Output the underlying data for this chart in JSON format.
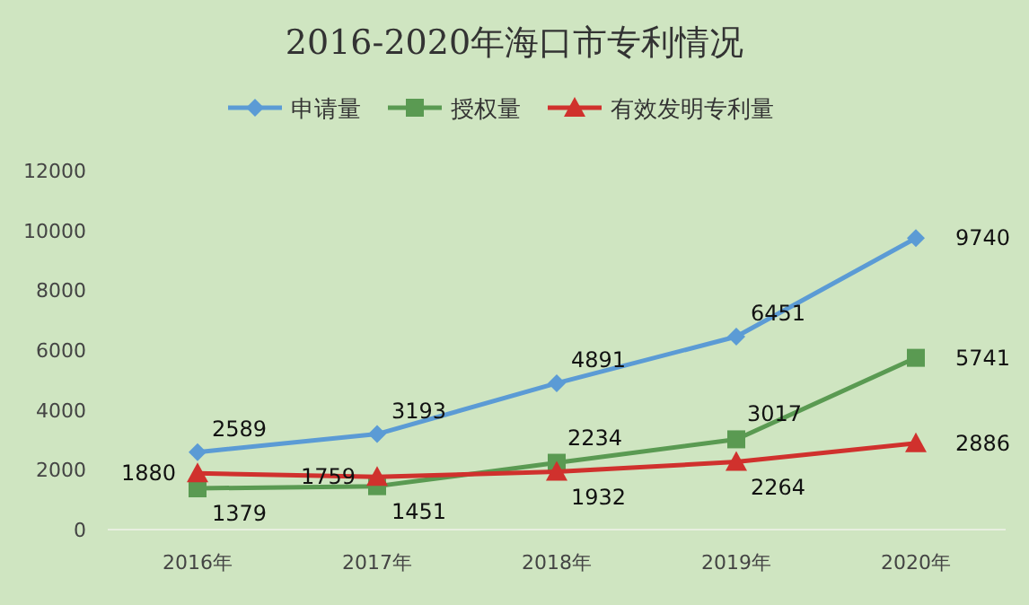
{
  "chart_data": {
    "type": "line",
    "title": "2016-2020年海口市专利情况",
    "categories": [
      "2016年",
      "2017年",
      "2018年",
      "2019年",
      "2020年"
    ],
    "series": [
      {
        "name": "申请量",
        "color": "#5b9bd5",
        "marker": "diamond",
        "values": [
          2589,
          3193,
          4891,
          6451,
          9740
        ]
      },
      {
        "name": "授权量",
        "color": "#5a9a52",
        "marker": "square",
        "values": [
          1379,
          1451,
          2234,
          3017,
          5741
        ]
      },
      {
        "name": "有效发明专利量",
        "color": "#d0312d",
        "marker": "triangle",
        "values": [
          1880,
          1759,
          1932,
          2264,
          2886
        ]
      }
    ],
    "ylim": [
      0,
      12000
    ],
    "yticks": [
      0,
      2000,
      4000,
      6000,
      8000,
      10000,
      12000
    ],
    "legend": "top",
    "data_labels": true
  }
}
